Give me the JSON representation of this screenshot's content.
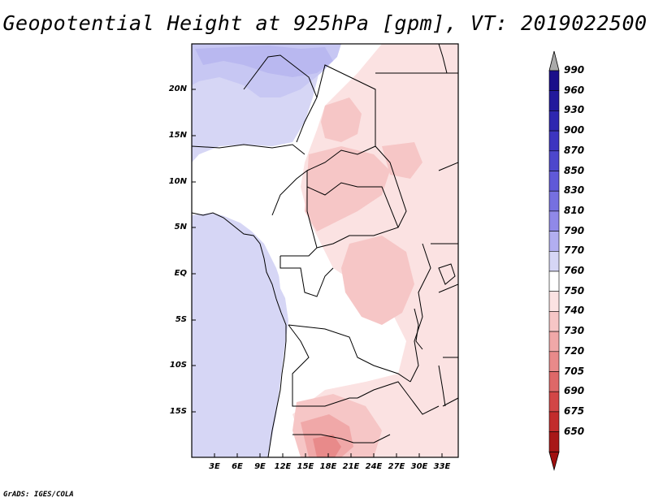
{
  "title": "Geopotential Height at 925hPa [gpm], VT: 2019022500",
  "credit": "GrADS: IGES/COLA",
  "lat_labels": [
    "20N",
    "15N",
    "10N",
    "5N",
    "EQ",
    "5S",
    "10S",
    "15S"
  ],
  "lon_labels": [
    "3E",
    "6E",
    "9E",
    "12E",
    "15E",
    "18E",
    "21E",
    "24E",
    "27E",
    "30E",
    "33E"
  ],
  "colorbar": {
    "labels": [
      "990",
      "960",
      "930",
      "900",
      "870",
      "850",
      "830",
      "810",
      "790",
      "770",
      "760",
      "750",
      "740",
      "730",
      "720",
      "705",
      "690",
      "675",
      "650"
    ],
    "colors": [
      "#1a0f8a",
      "#22199c",
      "#2e26b0",
      "#3d35c0",
      "#4d47cc",
      "#6059d8",
      "#7670e0",
      "#9089e8",
      "#b2aef0",
      "#d6d6f5",
      "#ffffff",
      "#fbe2e2",
      "#f6c6c6",
      "#f0a8a8",
      "#e88a8a",
      "#de6868",
      "#d24646",
      "#c22c2c",
      "#a81818"
    ],
    "over_color": "#aaaaaa",
    "under_color": "#a01010"
  },
  "map": {
    "field": "Geopotential height at 925 hPa",
    "units": "gpm",
    "lon_range": [
      0,
      35
    ],
    "lat_range": [
      -20,
      25
    ],
    "palette": {
      "dark_blue": "#b9b8f0",
      "mid_blue": "#c7c7f3",
      "light_blue": "#d6d6f5",
      "white": "#ffffff",
      "light_pink": "#fbe2e2",
      "pink": "#f6c6c6",
      "deep_pink": "#f0a8a8",
      "red": "#e88a8a"
    }
  }
}
